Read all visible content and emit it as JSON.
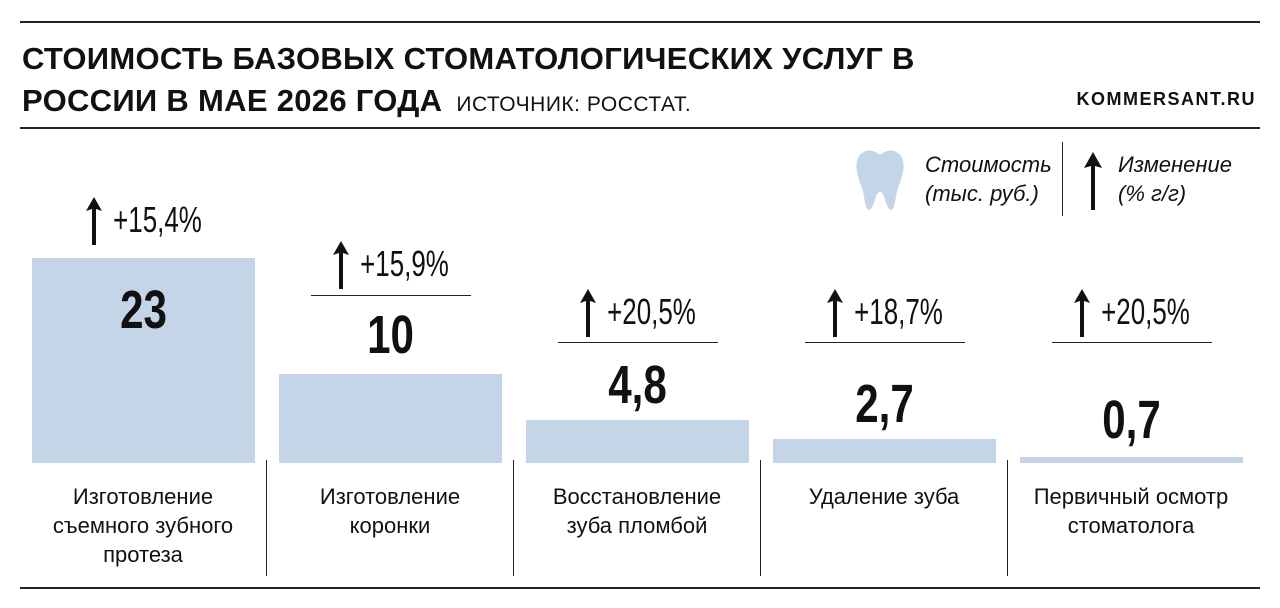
{
  "chart_data": {
    "type": "bar",
    "title": "СТОИМОСТЬ БАЗОВЫХ СТОМАТОЛОГИЧЕСКИХ УСЛУГ В РОССИИ В МАЕ 2026 ГОДА",
    "source": "ИСТОЧНИК: РОССТАТ.",
    "brand": "KOMMERSANT.RU",
    "categories": [
      "Изготовление съемного зубного протеза",
      "Изготовление коронки",
      "Восстановление зуба пломбой",
      "Удаление зуба",
      "Первичный осмотр стоматолога"
    ],
    "series": [
      {
        "name": "Стоимость (тыс. руб.)",
        "color": "#c5d5e8",
        "values": [
          23,
          10,
          4.8,
          2.7,
          0.7
        ],
        "value_labels": [
          "23",
          "10",
          "4,8",
          "2,7",
          "0,7"
        ]
      },
      {
        "name": "Изменение (% г/г)",
        "color": "#111111",
        "values": [
          15.4,
          15.9,
          20.5,
          18.7,
          20.5
        ],
        "value_labels": [
          "+15,4%",
          "+15,9%",
          "+20,5%",
          "+18,7%",
          "+20,5%"
        ]
      }
    ]
  }
}
